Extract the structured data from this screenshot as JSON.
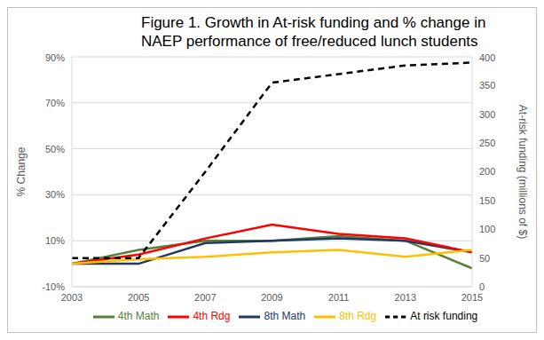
{
  "chart_data": {
    "type": "line",
    "title": "Figure 1. Growth in At-risk funding and % change in NAEP performance of free/reduced lunch students",
    "categories": [
      "2003",
      "2005",
      "2007",
      "2009",
      "2011",
      "2013",
      "2015"
    ],
    "y_label": "% Change",
    "y2_label": "At-risk funding (millions of $)",
    "ylim": [
      -10,
      90
    ],
    "yticks": [
      {
        "value": -10,
        "label": "-10%"
      },
      {
        "value": 10,
        "label": "10%"
      },
      {
        "value": 30,
        "label": "30%"
      },
      {
        "value": 50,
        "label": "50%"
      },
      {
        "value": 70,
        "label": "70%"
      },
      {
        "value": 90,
        "label": "90%"
      }
    ],
    "y2lim": [
      0,
      400
    ],
    "y2ticks": [
      0,
      50,
      100,
      150,
      200,
      250,
      300,
      350,
      400
    ],
    "grid": true,
    "legend": "bottom",
    "marker": "none",
    "series": [
      {
        "name": "4th Math",
        "color": "#548235",
        "values": [
          0,
          6,
          10,
          10,
          12,
          10,
          -2
        ]
      },
      {
        "name": "8th Math",
        "color": "#203864",
        "values": [
          0,
          0,
          9,
          10,
          11,
          10,
          5
        ]
      },
      {
        "name": "4th Rdg",
        "color": "#ff0000",
        "values": [
          0,
          4,
          11,
          17,
          13,
          11,
          5
        ]
      },
      {
        "name": "8th Rdg",
        "color": "#ffc000",
        "values": [
          0,
          2,
          3,
          5,
          6,
          3,
          6
        ]
      },
      {
        "name": "At risk funding",
        "color": "#000000",
        "axis": "y2",
        "line_style": "dashed",
        "values": [
          50,
          50,
          200,
          355,
          370,
          385,
          390
        ]
      }
    ]
  }
}
